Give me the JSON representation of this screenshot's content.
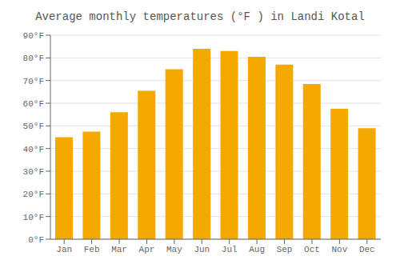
{
  "chart_data": {
    "type": "bar",
    "title": "Average monthly temperatures (°F ) in Landi Kotal",
    "categories": [
      "Jan",
      "Feb",
      "Mar",
      "Apr",
      "May",
      "Jun",
      "Jul",
      "Aug",
      "Sep",
      "Oct",
      "Nov",
      "Dec"
    ],
    "values": [
      45,
      47.5,
      56,
      65.5,
      75,
      84,
      83,
      80.5,
      77,
      68.5,
      57.5,
      49
    ],
    "color": "#F5A800",
    "ylim": [
      0,
      90
    ],
    "yticks": [
      {
        "value": 0,
        "label": "0°F"
      },
      {
        "value": 10,
        "label": "10°F"
      },
      {
        "value": 20,
        "label": "20°F"
      },
      {
        "value": 30,
        "label": "30°F"
      },
      {
        "value": 40,
        "label": "40°F"
      },
      {
        "value": 50,
        "label": "50°F"
      },
      {
        "value": 60,
        "label": "60°F"
      },
      {
        "value": 70,
        "label": "70°F"
      },
      {
        "value": 80,
        "label": "80°F"
      },
      {
        "value": 90,
        "label": "90°F"
      }
    ],
    "grid": true
  }
}
